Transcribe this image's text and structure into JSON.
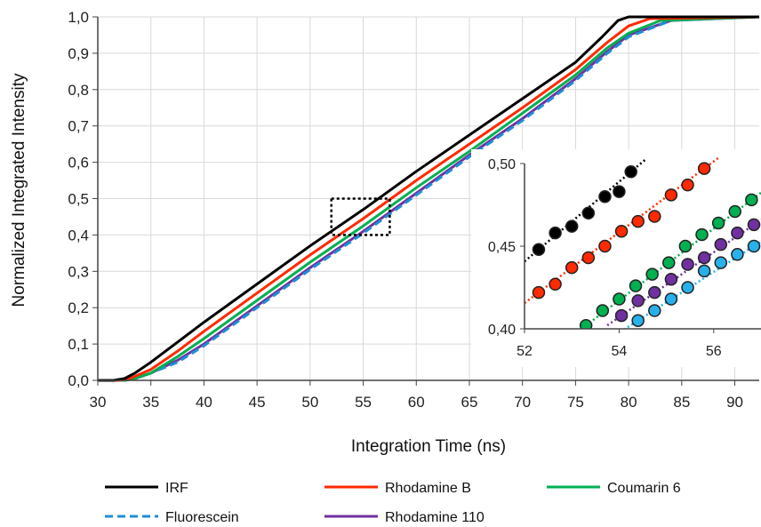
{
  "chart_data": {
    "type": "line",
    "xlabel": "Integration Time (ns)",
    "ylabel": "Normalized Integrated Intensity",
    "xlim": [
      30,
      92.3
    ],
    "ylim": [
      0,
      1.0
    ],
    "x_ticks": [
      "30",
      "35",
      "40",
      "45",
      "50",
      "55",
      "60",
      "65",
      "70",
      "75",
      "80",
      "85",
      "90"
    ],
    "y_ticks": [
      "0,0",
      "0,1",
      "0,2",
      "0,3",
      "0,4",
      "0,5",
      "0,6",
      "0,7",
      "0,8",
      "0,9",
      "1,0"
    ],
    "grid": true,
    "legend_position": "bottom",
    "series": [
      {
        "name": "IRF",
        "color": "#000000",
        "dash": "solid",
        "points": [
          [
            30,
            0
          ],
          [
            31.5,
            0
          ],
          [
            32.5,
            0.005
          ],
          [
            33.5,
            0.02
          ],
          [
            35,
            0.05
          ],
          [
            37.5,
            0.105
          ],
          [
            40,
            0.16
          ],
          [
            45,
            0.265
          ],
          [
            50,
            0.37
          ],
          [
            52.5,
            0.42
          ],
          [
            55,
            0.47
          ],
          [
            60,
            0.575
          ],
          [
            65,
            0.675
          ],
          [
            70,
            0.775
          ],
          [
            75,
            0.875
          ],
          [
            77.5,
            0.945
          ],
          [
            79,
            0.99
          ],
          [
            80,
            1.0
          ],
          [
            92.3,
            1.0
          ]
        ]
      },
      {
        "name": "Rhodamine B",
        "color": "#ff2a00",
        "dash": "solid",
        "points": [
          [
            30,
            0
          ],
          [
            32,
            0
          ],
          [
            33,
            0.005
          ],
          [
            35,
            0.03
          ],
          [
            37.5,
            0.08
          ],
          [
            40,
            0.135
          ],
          [
            45,
            0.24
          ],
          [
            50,
            0.345
          ],
          [
            52.5,
            0.395
          ],
          [
            55,
            0.445
          ],
          [
            60,
            0.55
          ],
          [
            65,
            0.65
          ],
          [
            70,
            0.75
          ],
          [
            75,
            0.855
          ],
          [
            78,
            0.93
          ],
          [
            80,
            0.975
          ],
          [
            82,
            0.995
          ],
          [
            92.3,
            1.0
          ]
        ]
      },
      {
        "name": "Coumarin 6",
        "color": "#00b050",
        "dash": "solid",
        "points": [
          [
            30,
            0
          ],
          [
            32.5,
            0
          ],
          [
            33.5,
            0.005
          ],
          [
            35,
            0.02
          ],
          [
            37.5,
            0.065
          ],
          [
            40,
            0.115
          ],
          [
            45,
            0.22
          ],
          [
            50,
            0.325
          ],
          [
            52.5,
            0.375
          ],
          [
            55,
            0.425
          ],
          [
            60,
            0.53
          ],
          [
            65,
            0.63
          ],
          [
            70,
            0.735
          ],
          [
            75,
            0.84
          ],
          [
            78,
            0.915
          ],
          [
            80,
            0.955
          ],
          [
            83,
            0.99
          ],
          [
            92.3,
            1.0
          ]
        ]
      },
      {
        "name": "Fluorescein",
        "color": "#1f8dd6",
        "dash": "dashed",
        "points": [
          [
            30,
            0
          ],
          [
            32.5,
            0
          ],
          [
            33.5,
            0.005
          ],
          [
            35,
            0.02
          ],
          [
            37.5,
            0.05
          ],
          [
            40,
            0.095
          ],
          [
            45,
            0.2
          ],
          [
            50,
            0.305
          ],
          [
            52.5,
            0.355
          ],
          [
            55,
            0.405
          ],
          [
            60,
            0.51
          ],
          [
            65,
            0.615
          ],
          [
            70,
            0.715
          ],
          [
            75,
            0.825
          ],
          [
            78,
            0.9
          ],
          [
            80,
            0.945
          ],
          [
            84,
            0.99
          ],
          [
            92.3,
            1.0
          ]
        ]
      },
      {
        "name": "Rhodamine 110",
        "color": "#7030a0",
        "dash": "solid",
        "points": [
          [
            30,
            0
          ],
          [
            32.5,
            0
          ],
          [
            33.5,
            0.005
          ],
          [
            35,
            0.02
          ],
          [
            37.5,
            0.055
          ],
          [
            40,
            0.1
          ],
          [
            45,
            0.205
          ],
          [
            50,
            0.31
          ],
          [
            52.5,
            0.36
          ],
          [
            55,
            0.41
          ],
          [
            60,
            0.515
          ],
          [
            65,
            0.62
          ],
          [
            70,
            0.72
          ],
          [
            75,
            0.83
          ],
          [
            78,
            0.905
          ],
          [
            80,
            0.95
          ],
          [
            84,
            0.99
          ],
          [
            92.3,
            1.0
          ]
        ]
      }
    ],
    "zoom_box": {
      "x": [
        52,
        57.5
      ],
      "y": [
        0.4,
        0.5
      ]
    },
    "inset": {
      "xlim": [
        52,
        57
      ],
      "ylim": [
        0.4,
        0.5
      ],
      "x_ticks": [
        "52",
        "54",
        "56"
      ],
      "y_ticks": [
        "0,40",
        "0,45",
        "0,50"
      ],
      "series": [
        {
          "name": "IRF",
          "color": "#000000",
          "x": [
            52.3,
            52.65,
            53.0,
            53.35,
            53.7,
            54.0,
            54.25
          ],
          "y": [
            0.448,
            0.458,
            0.462,
            0.47,
            0.48,
            0.483,
            0.495
          ]
        },
        {
          "name": "Rhodamine B",
          "color": "#ff2a00",
          "x": [
            52.3,
            52.65,
            53.0,
            53.35,
            53.7,
            54.05,
            54.4,
            54.75,
            55.1,
            55.45,
            55.8
          ],
          "y": [
            0.422,
            0.427,
            0.437,
            0.443,
            0.45,
            0.459,
            0.465,
            0.468,
            0.481,
            0.487,
            0.497
          ]
        },
        {
          "name": "Coumarin 6",
          "color": "#00b050",
          "x": [
            53.3,
            53.65,
            54.0,
            54.35,
            54.7,
            55.05,
            55.4,
            55.75,
            56.1,
            56.45,
            56.8
          ],
          "y": [
            0.402,
            0.411,
            0.418,
            0.426,
            0.433,
            0.44,
            0.45,
            0.457,
            0.464,
            0.471,
            0.478
          ]
        },
        {
          "name": "Rhodamine 110",
          "color": "#7030a0",
          "x": [
            54.05,
            54.4,
            54.75,
            55.1,
            55.45,
            55.8,
            56.15,
            56.5,
            56.85
          ],
          "y": [
            0.408,
            0.417,
            0.422,
            0.43,
            0.439,
            0.443,
            0.451,
            0.458,
            0.463
          ]
        },
        {
          "name": "Fluorescein",
          "color": "#29b0ea",
          "x": [
            54.4,
            54.75,
            55.1,
            55.45,
            55.8,
            56.15,
            56.5,
            56.85
          ],
          "y": [
            0.405,
            0.411,
            0.418,
            0.425,
            0.435,
            0.44,
            0.445,
            0.45
          ]
        }
      ]
    }
  }
}
